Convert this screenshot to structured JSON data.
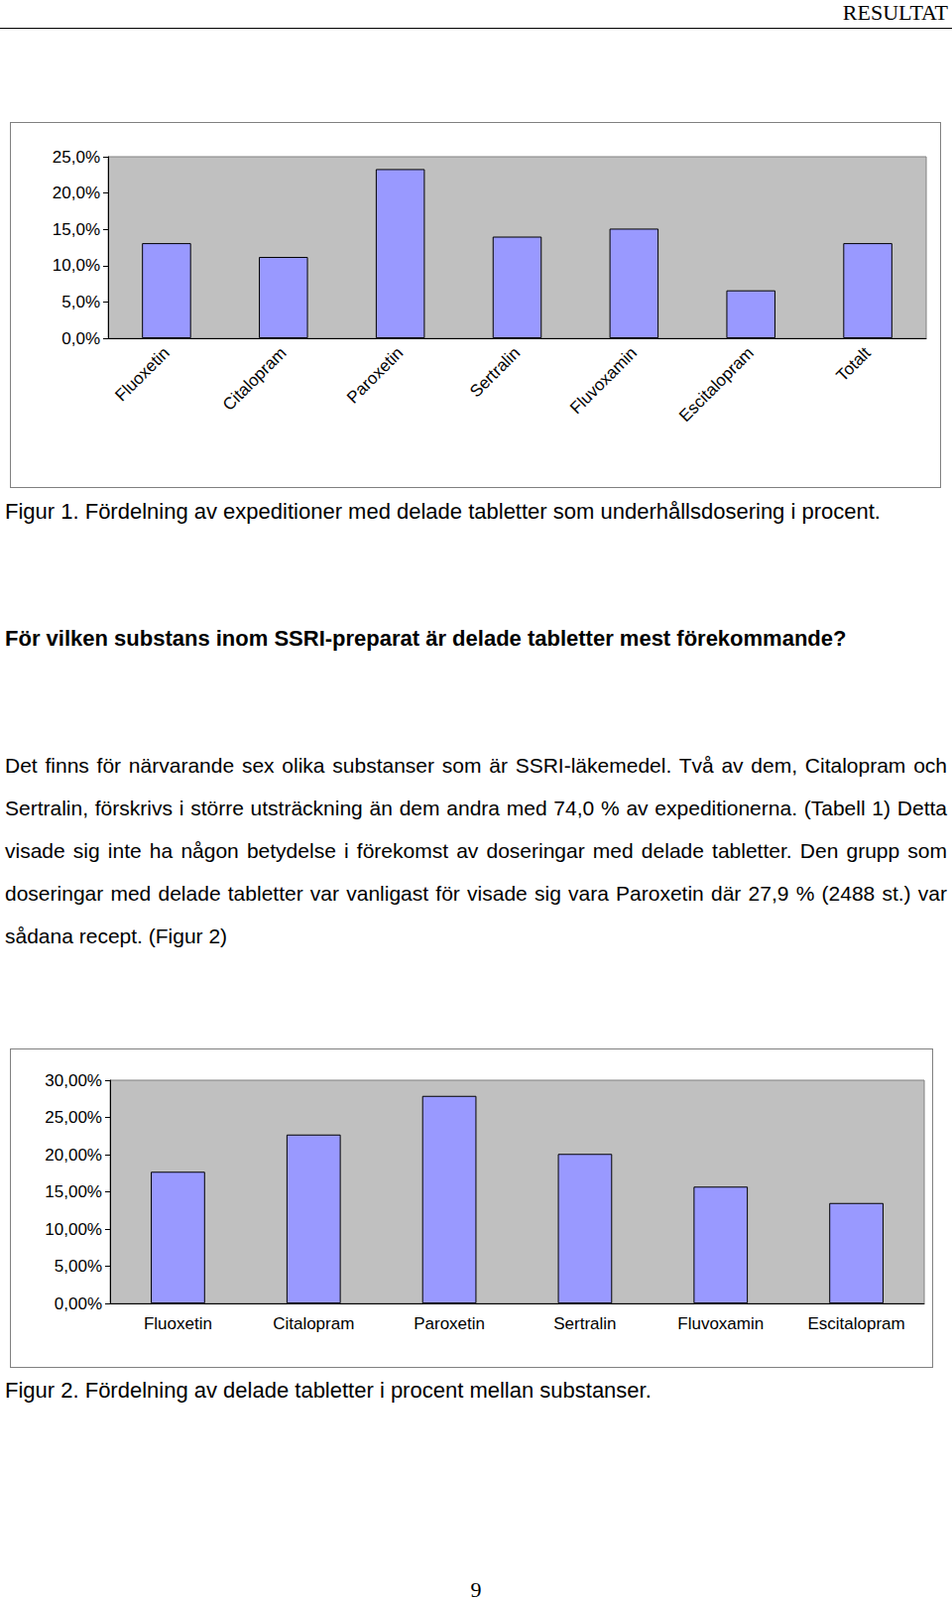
{
  "header": "RESULTAT",
  "chart_data": [
    {
      "type": "bar",
      "categories": [
        "Fluoxetin",
        "Citalopram",
        "Paroxetin",
        "Sertralin",
        "Fluvoxamin",
        "Escitalopram",
        "Totalt"
      ],
      "values": [
        13.1,
        11.2,
        23.3,
        14.0,
        15.1,
        6.6,
        13.1
      ],
      "color": "#9999ff",
      "ylim": [
        0,
        25
      ],
      "yticks": [
        {
          "value": 0,
          "label": "0,0%"
        },
        {
          "value": 5,
          "label": "5,0%"
        },
        {
          "value": 10,
          "label": "10,0%"
        },
        {
          "value": 15,
          "label": "15,0%"
        },
        {
          "value": 20,
          "label": "20,0%"
        },
        {
          "value": 25,
          "label": "25,0%"
        }
      ],
      "grid": false
    },
    {
      "type": "bar",
      "categories": [
        "Fluoxetin",
        "Citalopram",
        "Paroxetin",
        "Sertralin",
        "Fluvoxamin",
        "Escitalopram"
      ],
      "values": [
        17.7,
        22.7,
        27.9,
        20.1,
        15.7,
        13.5
      ],
      "color": "#9999ff",
      "ylim": [
        0,
        30
      ],
      "yticks": [
        {
          "value": 0,
          "label": "0,00%"
        },
        {
          "value": 5,
          "label": "5,00%"
        },
        {
          "value": 10,
          "label": "10,00%"
        },
        {
          "value": 15,
          "label": "15,00%"
        },
        {
          "value": 20,
          "label": "20,00%"
        },
        {
          "value": 25,
          "label": "25,00%"
        },
        {
          "value": 30,
          "label": "30,00%"
        }
      ],
      "grid": false
    }
  ],
  "figure_captions": [
    "Figur 1. Fördelning av expeditioner med delade tabletter som underhållsdosering i procent.",
    "Figur 2. Fördelning av delade tabletter i procent mellan substanser."
  ],
  "heading": "För vilken substans inom SSRI-preparat är delade tabletter mest förekommande?",
  "paragraph": "Det finns för närvarande sex olika substanser som är SSRI-läkemedel. Två av dem, Citalopram och Sertralin, förskrivs i större utsträckning än dem andra med 74,0 % av expeditionerna. (Tabell 1) Detta visade sig inte ha någon betydelse i förekomst av doseringar med delade tabletter. Den grupp som doseringar med delade tabletter var vanligast för visade sig vara Paroxetin där 27,9 % (2488 st.) var sådana recept. (Figur 2)",
  "page_number": "9"
}
